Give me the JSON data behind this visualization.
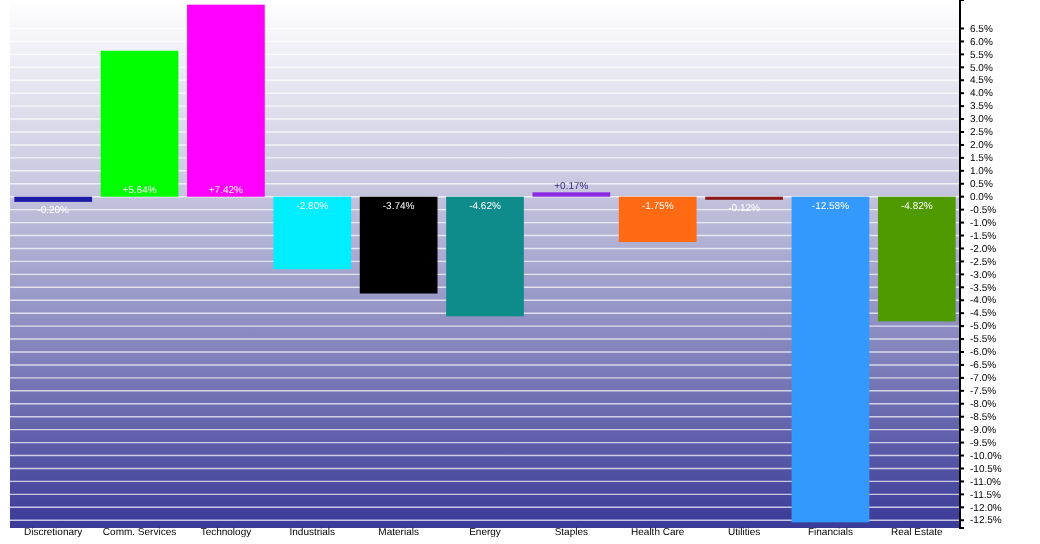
{
  "chart_data": {
    "type": "bar",
    "categories": [
      "Discretionary",
      "Comm. Services",
      "Technology",
      "Industrials",
      "Materials",
      "Energy",
      "Staples",
      "Health Care",
      "Utilities",
      "Financials",
      "Real Estate"
    ],
    "values": [
      -0.2,
      5.64,
      7.42,
      -2.8,
      -3.74,
      -4.62,
      0.17,
      -1.75,
      -0.12,
      -12.58,
      -4.82
    ],
    "colors": [
      "#1c1ca8",
      "#00ff00",
      "#ff00ff",
      "#00eeff",
      "#000000",
      "#0e8c8c",
      "#8a2be2",
      "#ff6a13",
      "#8b1a1a",
      "#3399ff",
      "#4f9a00"
    ],
    "value_labels": [
      "-0.20%",
      "+5.64%",
      "+7.42%",
      "-2.80%",
      "-3.74%",
      "-4.62%",
      "+0.17%",
      "-1.75%",
      "-0.12%",
      "-12.58%",
      "-4.82%"
    ],
    "ylim": [
      -12.8,
      7.6
    ],
    "yticks": [
      {
        "value": 6.5,
        "label": "6.5%"
      },
      {
        "value": 6,
        "label": "6.0%"
      },
      {
        "value": 5.5,
        "label": "5.5%"
      },
      {
        "value": 5,
        "label": "5.0%"
      },
      {
        "value": 4.5,
        "label": "4.5%"
      },
      {
        "value": 4,
        "label": "4.0%"
      },
      {
        "value": 3.5,
        "label": "3.5%"
      },
      {
        "value": 3,
        "label": "3.0%"
      },
      {
        "value": 2.5,
        "label": "2.5%"
      },
      {
        "value": 2,
        "label": "2.0%"
      },
      {
        "value": 1.5,
        "label": "1.5%"
      },
      {
        "value": 1,
        "label": "1.0%"
      },
      {
        "value": 0.5,
        "label": "0.5%"
      },
      {
        "value": 0,
        "label": "0.0%"
      },
      {
        "value": -0.5,
        "label": "-0.5%"
      },
      {
        "value": -1,
        "label": "-1.0%"
      },
      {
        "value": -1.5,
        "label": "-1.5%"
      },
      {
        "value": -2,
        "label": "-2.0%"
      },
      {
        "value": -2.5,
        "label": "-2.5%"
      },
      {
        "value": -3,
        "label": "-3.0%"
      },
      {
        "value": -3.5,
        "label": "-3.5%"
      },
      {
        "value": -4,
        "label": "-4.0%"
      },
      {
        "value": -4.5,
        "label": "-4.5%"
      },
      {
        "value": -5,
        "label": "-5.0%"
      },
      {
        "value": -5.5,
        "label": "-5.5%"
      },
      {
        "value": -6,
        "label": "-6.0%"
      },
      {
        "value": -6.5,
        "label": "-6.5%"
      },
      {
        "value": -7,
        "label": "-7.0%"
      },
      {
        "value": -7.5,
        "label": "-7.5%"
      },
      {
        "value": -8,
        "label": "-8.0%"
      },
      {
        "value": -8.5,
        "label": "-8.5%"
      },
      {
        "value": -9,
        "label": "-9.0%"
      },
      {
        "value": -9.5,
        "label": "-9.5%"
      },
      {
        "value": -10,
        "label": "-10.0%"
      },
      {
        "value": -10.5,
        "label": "-10.5%"
      },
      {
        "value": -11,
        "label": "-11.0%"
      },
      {
        "value": -11.5,
        "label": "-11.5%"
      },
      {
        "value": -12,
        "label": "-12.0%"
      },
      {
        "value": -12.5,
        "label": "-12.5%"
      }
    ],
    "grid": "y"
  }
}
